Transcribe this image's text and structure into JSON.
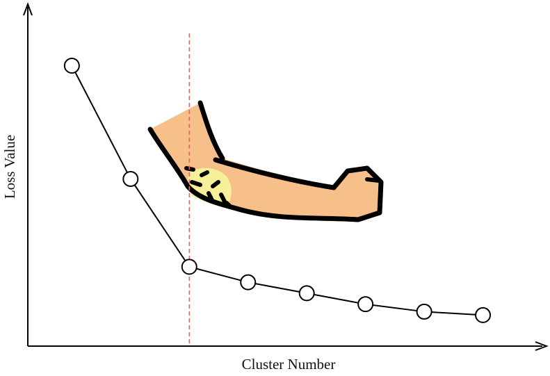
{
  "chart_data": {
    "type": "line",
    "title": "",
    "xlabel": "Cluster Number",
    "ylabel": "Loss Value",
    "x": [
      1,
      2,
      3,
      4,
      5,
      6,
      7,
      8
    ],
    "series": [
      {
        "values": [
          100,
          57.6,
          24.7,
          18.9,
          14.8,
          10.7,
          7.9,
          6.6
        ]
      }
    ],
    "xlim": [
      0.25,
      9.0
    ],
    "ylim": [
      -5,
      122
    ],
    "elbow_x": 3,
    "grid": false,
    "legend": "none",
    "x_ticks": false,
    "y_ticks": false,
    "colors": {
      "line": "#000000",
      "marker_fill": "#ffffff",
      "marker_stroke": "#000000",
      "elbow_line": "#f06060",
      "arm_skin": "#f7c08a",
      "arm_highlight": "#f7ef9a",
      "arm_outline": "#000000"
    },
    "decoration": {
      "icon": "flexed-arm-icon"
    }
  }
}
